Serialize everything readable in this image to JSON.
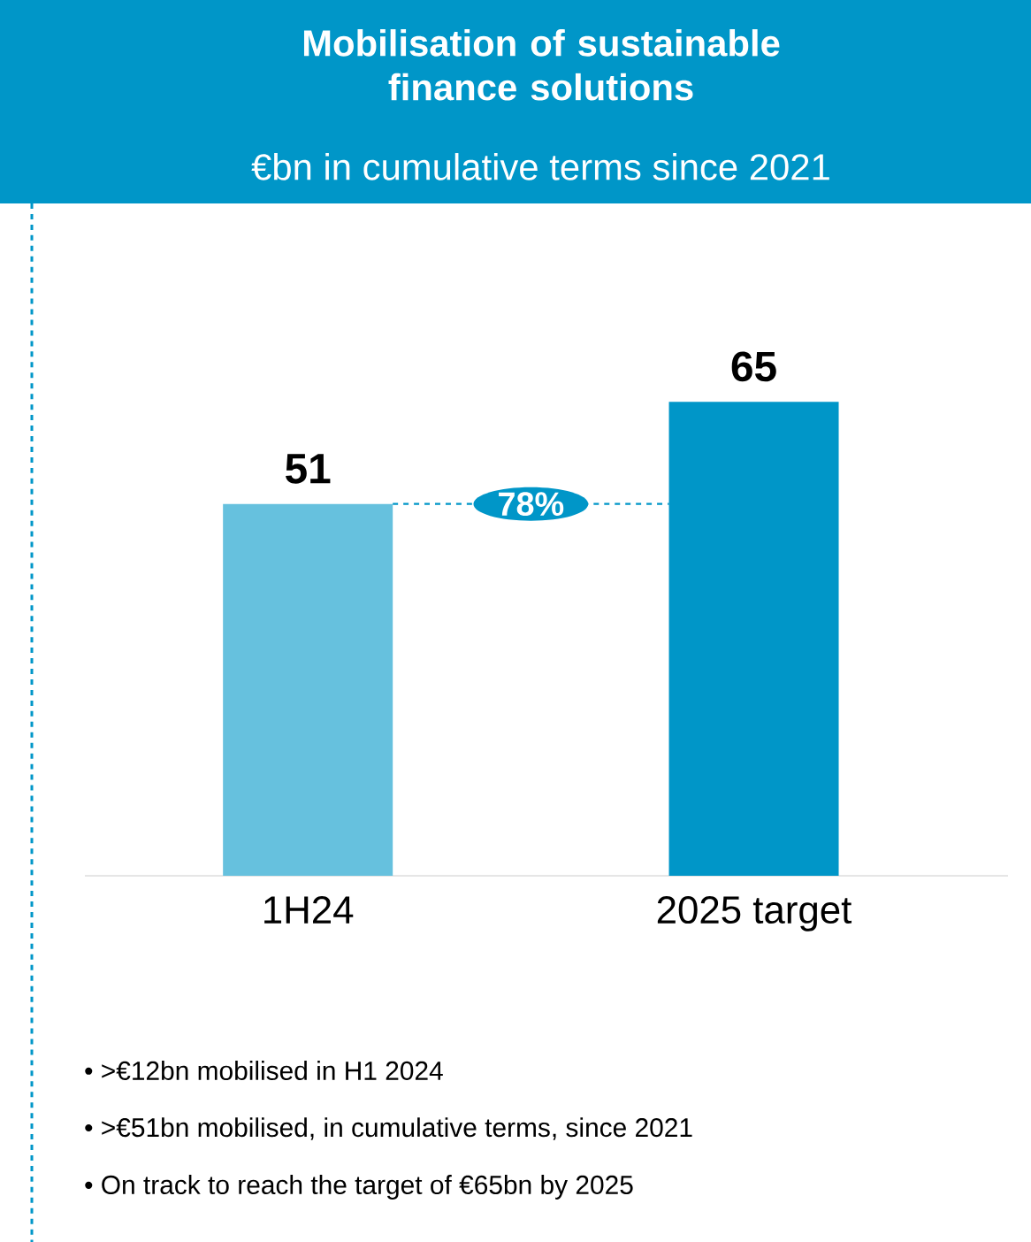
{
  "chart_data": {
    "type": "bar",
    "title": "Mobilisation of sustainable finance solutions",
    "subtitle": "€bn in cumulative terms since 2021",
    "categories": [
      "1H24",
      "2025 target"
    ],
    "values": [
      51,
      65
    ],
    "colors": [
      "#66c1de",
      "#0096c8"
    ],
    "data_labels": true,
    "ref_lines": [
      {
        "axis": "y",
        "value": 51,
        "color": "#0096c8",
        "line_style": "dashed"
      }
    ],
    "annotations": [
      "78%",
      "• >€12bn mobilised in H1 2024",
      "• >€51bn mobilised, in cumulative terms, since 2021",
      "• On track to reach the target of €65bn by 2025"
    ]
  }
}
